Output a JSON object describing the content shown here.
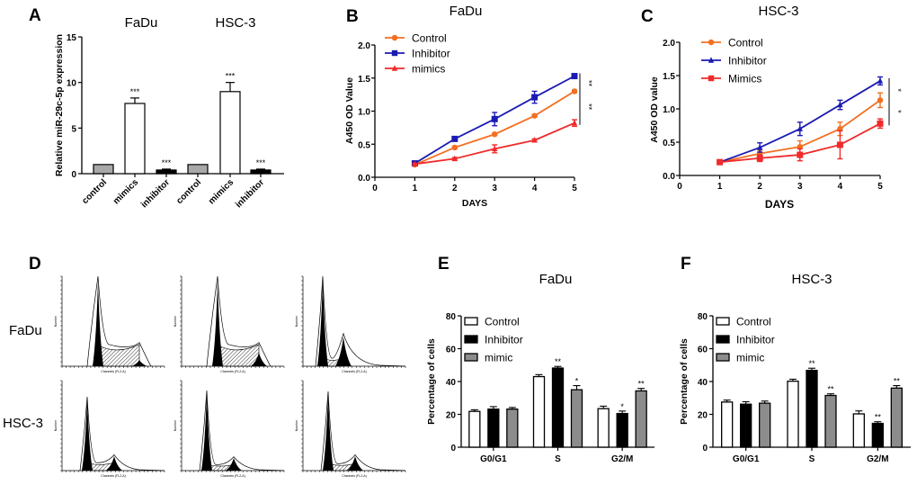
{
  "figure": {
    "panels": [
      "A",
      "B",
      "C",
      "D",
      "E",
      "F"
    ]
  },
  "colors": {
    "control_line": "#f36f21",
    "inhibitor_line": "#1b1bb3",
    "mimics_line": "#f02a2a",
    "bar_gray": "#8c8c8c",
    "bar_light_gray": "#a8a8a8",
    "bar_black": "#000000",
    "bar_white": "#ffffff"
  },
  "chart_data": [
    {
      "panel": "A",
      "type": "bar",
      "title_groups": [
        "FaDu",
        "HSC-3"
      ],
      "categories": [
        "control",
        "mimics",
        "inhibitor",
        "control",
        "mimics",
        "inhibitor"
      ],
      "groups": [
        "FaDu",
        "FaDu",
        "FaDu",
        "HSC-3",
        "HSC-3",
        "HSC-3"
      ],
      "values": [
        1.0,
        7.7,
        0.4,
        1.0,
        9.0,
        0.4
      ],
      "errors": [
        0,
        0.6,
        0.1,
        0,
        1.0,
        0.1
      ],
      "fills": [
        "gray",
        "white",
        "black",
        "gray",
        "white",
        "black"
      ],
      "significance": [
        "",
        "***",
        "***",
        "",
        "***",
        "***"
      ],
      "xlabel": "",
      "ylabel": "Relative miR-29c-5p expression",
      "ylim": [
        0,
        15
      ],
      "yticks": [
        0,
        5,
        10,
        15
      ],
      "grid": false
    },
    {
      "panel": "B",
      "type": "line",
      "title": "FaDu",
      "xlabel": "DAYS",
      "ylabel": "A450 OD Value",
      "xlim": [
        0,
        5
      ],
      "ylim": [
        0,
        2.0
      ],
      "xticks": [
        0,
        1,
        2,
        3,
        4,
        5
      ],
      "yticks": [
        "0.0",
        "0.5",
        "1.0",
        "1.5",
        "2.0"
      ],
      "x": [
        1,
        2,
        3,
        4,
        5
      ],
      "series": [
        {
          "name": "Control",
          "marker": "circle",
          "color_key": "control_line",
          "values": [
            0.19,
            0.45,
            0.65,
            0.93,
            1.3
          ],
          "errors": [
            0.01,
            0.02,
            0.02,
            0.02,
            0.02
          ]
        },
        {
          "name": "Inhibitor",
          "marker": "square",
          "color_key": "inhibitor_line",
          "values": [
            0.21,
            0.58,
            0.88,
            1.21,
            1.53
          ],
          "errors": [
            0.02,
            0.02,
            0.1,
            0.09,
            0.03
          ]
        },
        {
          "name": "mimics",
          "marker": "triangle",
          "color_key": "mimics_line",
          "values": [
            0.2,
            0.28,
            0.43,
            0.56,
            0.82
          ],
          "errors": [
            0.01,
            0.02,
            0.06,
            0.02,
            0.05
          ]
        }
      ],
      "significance": [
        {
          "between": [
            "Inhibitor",
            "Control"
          ],
          "label": "**"
        },
        {
          "between": [
            "Control",
            "mimics"
          ],
          "label": "**"
        }
      ],
      "legend": "top-left",
      "grid": false
    },
    {
      "panel": "C",
      "type": "line",
      "title": "HSC-3",
      "xlabel": "DAYS",
      "ylabel": "A450 OD value",
      "xlim": [
        0,
        5
      ],
      "ylim": [
        0,
        2.0
      ],
      "xticks": [
        0,
        1,
        2,
        3,
        4,
        5
      ],
      "yticks": [
        "0.0",
        "0.5",
        "1.0",
        "1.5",
        "2.0"
      ],
      "x": [
        1,
        2,
        3,
        4,
        5
      ],
      "series": [
        {
          "name": "Control",
          "marker": "circle",
          "color_key": "control_line",
          "values": [
            0.2,
            0.33,
            0.43,
            0.7,
            1.13
          ],
          "errors": [
            0.02,
            0.05,
            0.09,
            0.1,
            0.11
          ]
        },
        {
          "name": "Inhibitor",
          "marker": "triangle",
          "color_key": "inhibitor_line",
          "values": [
            0.2,
            0.42,
            0.7,
            1.06,
            1.42
          ],
          "errors": [
            0.02,
            0.07,
            0.1,
            0.07,
            0.06
          ]
        },
        {
          "name": "Mimics",
          "marker": "square",
          "color_key": "mimics_line",
          "values": [
            0.2,
            0.26,
            0.31,
            0.46,
            0.78
          ],
          "errors": [
            0.02,
            0.05,
            0.09,
            0.21,
            0.07
          ]
        }
      ],
      "significance": [
        {
          "between": [
            "Inhibitor",
            "Control"
          ],
          "label": "*"
        },
        {
          "between": [
            "Control",
            "Mimics"
          ],
          "label": "*"
        }
      ],
      "legend": "top-left",
      "grid": false
    },
    {
      "panel": "D",
      "type": "histogram-grid",
      "row_labels": [
        "FaDu",
        "HSC-3"
      ],
      "columns": 3,
      "xlabel": "Channels (FL2-A)",
      "ylabel": "Number",
      "note": "flow cytometry DNA content histograms; black = G0/G1 and G2/M peaks, hatched = S phase"
    },
    {
      "panel": "E",
      "type": "bar",
      "title": "FaDu",
      "categories": [
        "G0/G1",
        "S",
        "G2/M"
      ],
      "series": [
        {
          "name": "Control",
          "fill": "white",
          "values": [
            21.8,
            43.0,
            23.5
          ],
          "errors": [
            1.0,
            1.2,
            1.5
          ],
          "significance": [
            "",
            "",
            ""
          ]
        },
        {
          "name": "Inhibitor",
          "fill": "black",
          "values": [
            23.2,
            48.2,
            20.5
          ],
          "errors": [
            1.5,
            1.0,
            1.5
          ],
          "significance": [
            "",
            "**",
            "*"
          ]
        },
        {
          "name": "mimic",
          "fill": "gray",
          "values": [
            23.2,
            35.0,
            34.3
          ],
          "errors": [
            1.0,
            2.5,
            1.5
          ],
          "significance": [
            "",
            "*",
            "**"
          ]
        }
      ],
      "xlabel": "",
      "ylabel": "Percentage of cells",
      "ylim": [
        0,
        80
      ],
      "yticks": [
        0,
        20,
        40,
        60,
        80
      ],
      "legend": "top-left",
      "grid": false
    },
    {
      "panel": "F",
      "type": "bar",
      "title": "HSC-3",
      "categories": [
        "G0/G1",
        "S",
        "G2/M"
      ],
      "series": [
        {
          "name": "Control",
          "fill": "white",
          "values": [
            27.5,
            40.2,
            20.3
          ],
          "errors": [
            1.2,
            1.2,
            1.8
          ],
          "significance": [
            "",
            "",
            ""
          ]
        },
        {
          "name": "Inhibitor",
          "fill": "black",
          "values": [
            26.2,
            46.8,
            14.5
          ],
          "errors": [
            1.5,
            1.3,
            1.0
          ],
          "significance": [
            "",
            "**",
            "**"
          ]
        },
        {
          "name": "mimic",
          "fill": "gray",
          "values": [
            26.8,
            31.5,
            36.0
          ],
          "errors": [
            1.3,
            1.0,
            1.5
          ],
          "significance": [
            "",
            "**",
            "**"
          ]
        }
      ],
      "xlabel": "",
      "ylabel": "Percentage of cells",
      "ylim": [
        0,
        80
      ],
      "yticks": [
        0,
        20,
        40,
        60,
        80
      ],
      "legend": "top-left",
      "grid": false
    }
  ]
}
